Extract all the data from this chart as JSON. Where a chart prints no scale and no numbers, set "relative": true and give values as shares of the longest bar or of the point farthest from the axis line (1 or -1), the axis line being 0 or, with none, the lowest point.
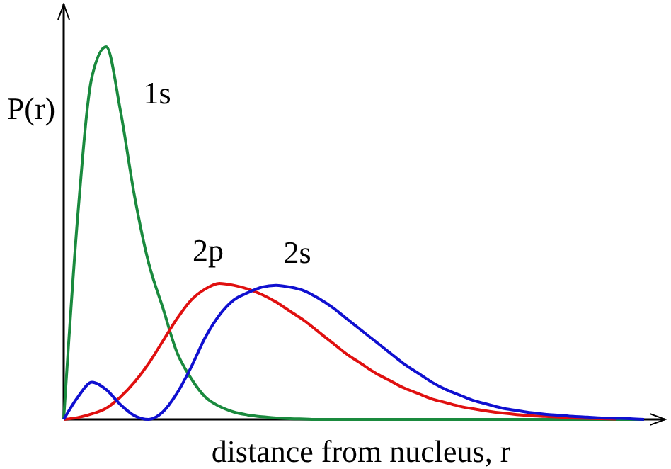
{
  "chart_data": {
    "type": "line",
    "relative": true,
    "ylabel": "P(r)",
    "xlabel": "distance from nucleus, r",
    "categories": [
      null,
      null,
      null,
      null,
      null,
      null,
      null,
      null,
      null,
      null,
      null,
      null,
      null,
      null,
      null,
      null,
      null,
      null,
      null,
      null,
      null,
      null,
      null,
      null,
      null,
      null,
      null,
      null,
      null,
      null,
      null,
      null,
      null,
      null,
      null,
      null,
      null,
      null,
      null,
      null,
      null,
      null
    ],
    "series": [
      {
        "name": "1s",
        "color": "#1a8a3e",
        "values": [
          0,
          0.55,
          0.92,
          1,
          0.83,
          0.6,
          0.42,
          0.3,
          0.18,
          0.11,
          0.06,
          0.035,
          0.02,
          0.012,
          0.007,
          0.004,
          0.002,
          0.001,
          0,
          0,
          0,
          0,
          0,
          0,
          0,
          0,
          0,
          0,
          0,
          0,
          0,
          0,
          0,
          0,
          0,
          0,
          0,
          0,
          0,
          0,
          0,
          0
        ]
      },
      {
        "name": "2p",
        "color": "#e01010",
        "values": [
          0,
          0.005,
          0.015,
          0.03,
          0.06,
          0.1,
          0.15,
          0.21,
          0.27,
          0.32,
          0.35,
          0.365,
          0.36,
          0.35,
          0.335,
          0.315,
          0.29,
          0.265,
          0.235,
          0.205,
          0.175,
          0.15,
          0.125,
          0.105,
          0.085,
          0.07,
          0.055,
          0.045,
          0.035,
          0.028,
          0.022,
          0.017,
          0.013,
          0.01,
          0.008,
          0.006,
          0.004,
          0.003,
          0.002,
          0.001,
          null,
          null
        ]
      },
      {
        "name": "2s",
        "color": "#1010d0",
        "values": [
          0,
          0.06,
          0.1,
          0.08,
          0.04,
          0.01,
          0,
          0.02,
          0.07,
          0.14,
          0.22,
          0.28,
          0.32,
          0.34,
          0.355,
          0.36,
          0.355,
          0.345,
          0.325,
          0.3,
          0.27,
          0.24,
          0.21,
          0.18,
          0.15,
          0.125,
          0.1,
          0.08,
          0.065,
          0.05,
          0.04,
          0.03,
          0.024,
          0.018,
          0.014,
          0.011,
          0.008,
          0.006,
          0.004,
          0.003,
          0.002,
          0
        ]
      }
    ]
  }
}
